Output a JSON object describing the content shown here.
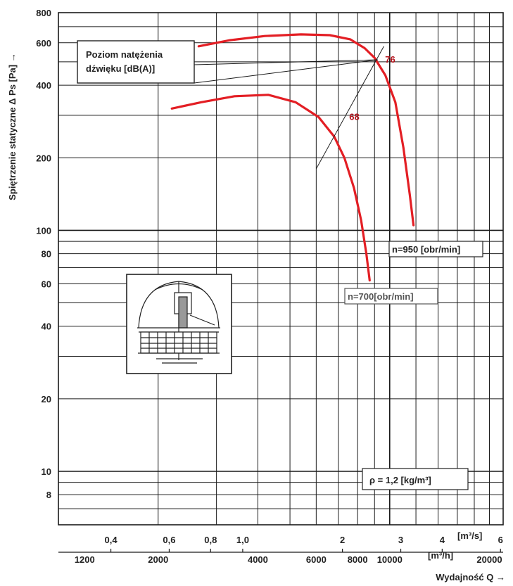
{
  "chart_data": {
    "type": "line",
    "y_axis": {
      "label": "Spiętrzenie statyczne Δ Ps [Pa] →",
      "scale": "log",
      "ylim": [
        6,
        800
      ],
      "tick_labels": [
        "800",
        "600",
        "400",
        "200",
        "100",
        "80",
        "60",
        "40",
        "20",
        "10",
        "8"
      ],
      "tick_values": [
        800,
        600,
        400,
        200,
        100,
        80,
        60,
        40,
        20,
        10,
        8
      ]
    },
    "x_axis": {
      "label": "Wydajność Q →",
      "scale": "log",
      "xlim_m3h": [
        1000,
        22000
      ],
      "ticks_m3s": {
        "unit": "[m³/s]",
        "labels": [
          "0,4",
          "0,6",
          "0,8",
          "1,0",
          "2",
          "3",
          "4",
          "6"
        ],
        "values": [
          0.4,
          0.6,
          0.8,
          1.0,
          2,
          3,
          4,
          6
        ]
      },
      "ticks_m3h": {
        "unit": "[m³/h]",
        "labels": [
          "1200",
          "2000",
          "4000",
          "6000",
          "8000",
          "10000",
          "20000"
        ],
        "values": [
          1200,
          2000,
          4000,
          6000,
          8000,
          10000,
          20000
        ]
      }
    },
    "series": [
      {
        "name": "n=950 [obr/min]",
        "x": [
          2650,
          3300,
          4200,
          5400,
          6600,
          7600,
          8400,
          9000,
          9700,
          10400,
          11000,
          11500,
          11800
        ],
        "y": [
          580,
          615,
          640,
          650,
          645,
          620,
          570,
          520,
          440,
          340,
          220,
          140,
          105
        ]
      },
      {
        "name": "n=700[obr/min]",
        "x": [
          2200,
          2700,
          3400,
          4300,
          5200,
          6100,
          6800,
          7300,
          7800,
          8200,
          8500,
          8700
        ],
        "y": [
          320,
          340,
          360,
          365,
          340,
          295,
          245,
          200,
          150,
          110,
          80,
          62
        ]
      }
    ],
    "noise_line": {
      "x": [
        6000,
        9600
      ],
      "y": [
        180,
        580
      ]
    },
    "annotations": {
      "noise_box": "Poziom natężenia dźwięku [dB(A)]",
      "noise_950": "76",
      "noise_700": "68",
      "density_box": "ρ = 1,2 [kg/m³]"
    }
  },
  "colors": {
    "curve": "#e31e24",
    "grid": "#1a1a1a",
    "label": "#b3121b"
  },
  "icons": {
    "fan_illustration": "roof-fan-icon"
  }
}
